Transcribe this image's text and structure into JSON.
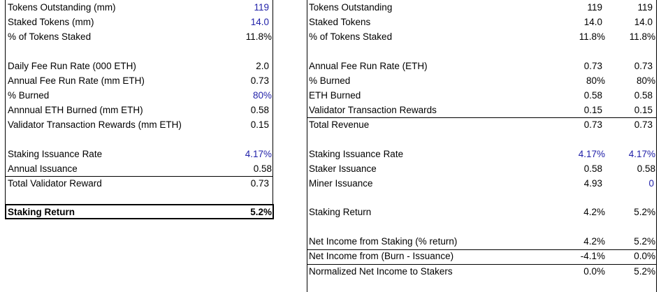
{
  "left": {
    "rows": [
      {
        "label": "Tokens Outstanding (mm)",
        "value": "119",
        "blue": true
      },
      {
        "label": "Staked Tokens (mm)",
        "value": "14.0",
        "blue": true
      },
      {
        "label": "% of Tokens Staked",
        "value": "11.8%",
        "blue": false
      },
      {
        "label": "Daily Fee Run Rate (000 ETH)",
        "value": "2.0",
        "blue": false
      },
      {
        "label": "Annual Fee Run Rate (mm ETH)",
        "value": "0.73",
        "blue": false
      },
      {
        "label": "% Burned",
        "value": "80%",
        "blue": true
      },
      {
        "label": "Annnual ETH Burned (mm ETH)",
        "value": "0.58",
        "blue": false
      },
      {
        "label": "Validator Transaction Rewards (mm ETH)",
        "value": "0.15",
        "blue": false
      },
      {
        "label": "Staking Issuance Rate",
        "value": "4.17%",
        "blue": true
      },
      {
        "label": "Annual Issuance",
        "value": "0.58",
        "blue": false
      },
      {
        "label": "Total Validator Reward",
        "value": "0.73",
        "blue": false
      },
      {
        "label": "Staking Return",
        "value": "5.2%",
        "blue": false
      }
    ]
  },
  "right": {
    "rows": [
      {
        "label": "Tokens Outstanding",
        "v1": "119",
        "v2": "119",
        "b1": false,
        "b2": false
      },
      {
        "label": "Staked Tokens",
        "v1": "14.0",
        "v2": "14.0",
        "b1": false,
        "b2": false
      },
      {
        "label": "% of Tokens Staked",
        "v1": "11.8%",
        "v2": "11.8%",
        "b1": false,
        "b2": false
      },
      {
        "label": "Annual Fee Run Rate (ETH)",
        "v1": "0.73",
        "v2": "0.73",
        "b1": false,
        "b2": false
      },
      {
        "label": "% Burned",
        "v1": "80%",
        "v2": "80%",
        "b1": false,
        "b2": false
      },
      {
        "label": "ETH Burned",
        "v1": "0.58",
        "v2": "0.58",
        "b1": false,
        "b2": false
      },
      {
        "label": "Validator Transaction Rewards",
        "v1": "0.15",
        "v2": "0.15",
        "b1": false,
        "b2": false
      },
      {
        "label": "Total Revenue",
        "v1": "0.73",
        "v2": "0.73",
        "b1": false,
        "b2": false
      },
      {
        "label": "Staking Issuance Rate",
        "v1": "4.17%",
        "v2": "4.17%",
        "b1": true,
        "b2": true
      },
      {
        "label": "Staker Issuance",
        "v1": "0.58",
        "v2": "0.58",
        "b1": false,
        "b2": false
      },
      {
        "label": "Miner Issuance",
        "v1": "4.93",
        "v2": "0",
        "b1": false,
        "b2": true
      },
      {
        "label": "Staking Return",
        "v1": "4.2%",
        "v2": "5.2%",
        "b1": false,
        "b2": false
      },
      {
        "label": "Net Income from Staking (% return)",
        "v1": "4.2%",
        "v2": "5.2%",
        "b1": false,
        "b2": false
      },
      {
        "label": "Net Income from (Burn - Issuance)",
        "v1": "-4.1%",
        "v2": "0.0%",
        "b1": false,
        "b2": false
      },
      {
        "label": "Normalized Net Income to Stakers",
        "v1": "0.0%",
        "v2": "5.2%",
        "b1": false,
        "b2": false
      }
    ]
  },
  "colors": {
    "input_blue": "#1f1fa8",
    "text": "#000000",
    "border": "#000000"
  }
}
